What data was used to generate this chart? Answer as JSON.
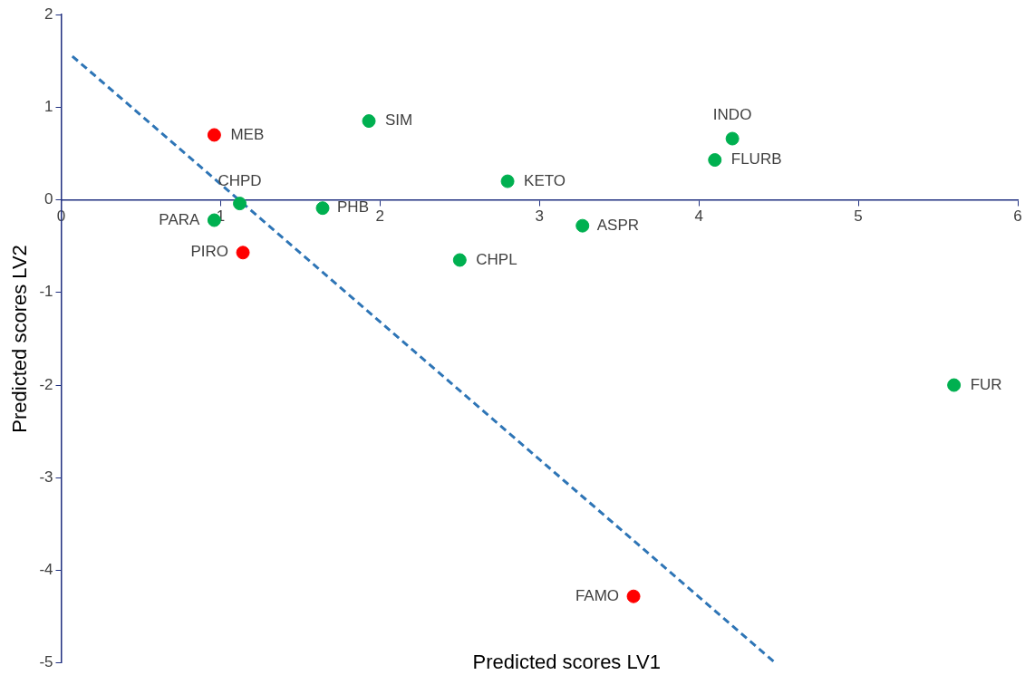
{
  "chart_data": {
    "type": "scatter",
    "xlabel": "Predicted scores LV1",
    "ylabel": "Predicted scores LV2",
    "xlim": [
      0,
      6
    ],
    "xticks": [
      0,
      1,
      2,
      3,
      4,
      5,
      6
    ],
    "ylim": [
      -5,
      2
    ],
    "yticks": [
      -5,
      -4,
      -3,
      -2,
      -1,
      0,
      1,
      2
    ],
    "grid": false,
    "legend": false,
    "series": [
      {
        "marker": "circle",
        "x": [
          0.96,
          1.93,
          4.21,
          4.1,
          2.8,
          1.12,
          0.96,
          1.64,
          3.27,
          1.14,
          2.5,
          5.6,
          3.59
        ],
        "values": [
          0.7,
          0.85,
          0.66,
          0.43,
          0.2,
          -0.04,
          -0.22,
          -0.09,
          -0.28,
          -0.57,
          -0.65,
          -2.0,
          -4.28
        ],
        "colors": [
          "#ff0000",
          "#00b050",
          "#00b050",
          "#00b050",
          "#00b050",
          "#00b050",
          "#00b050",
          "#00b050",
          "#00b050",
          "#ff0000",
          "#00b050",
          "#00b050",
          "#ff0000"
        ]
      },
      {
        "type": "line",
        "line_style": "dashed",
        "color": "#2e75b6",
        "x": [
          0.07,
          4.48
        ],
        "values": [
          1.55,
          -5
        ]
      }
    ],
    "annotations": [
      {
        "text": "MEB",
        "x": 0.96,
        "y": 0.7
      },
      {
        "text": "SIM",
        "x": 1.93,
        "y": 0.85
      },
      {
        "text": "INDO",
        "x": 4.21,
        "y": 0.66
      },
      {
        "text": "FLURB",
        "x": 4.1,
        "y": 0.43
      },
      {
        "text": "KETO",
        "x": 2.8,
        "y": 0.2
      },
      {
        "text": "CHPD",
        "x": 1.12,
        "y": -0.04
      },
      {
        "text": "PARA",
        "x": 0.96,
        "y": -0.22
      },
      {
        "text": "PHB",
        "x": 1.64,
        "y": -0.09
      },
      {
        "text": "ASPR",
        "x": 3.27,
        "y": -0.28
      },
      {
        "text": "PIRO",
        "x": 1.14,
        "y": -0.57
      },
      {
        "text": "CHPL",
        "x": 2.5,
        "y": -0.65
      },
      {
        "text": "FUR",
        "x": 5.6,
        "y": -2.0
      },
      {
        "text": "FAMO",
        "x": 3.59,
        "y": -4.28
      }
    ]
  }
}
